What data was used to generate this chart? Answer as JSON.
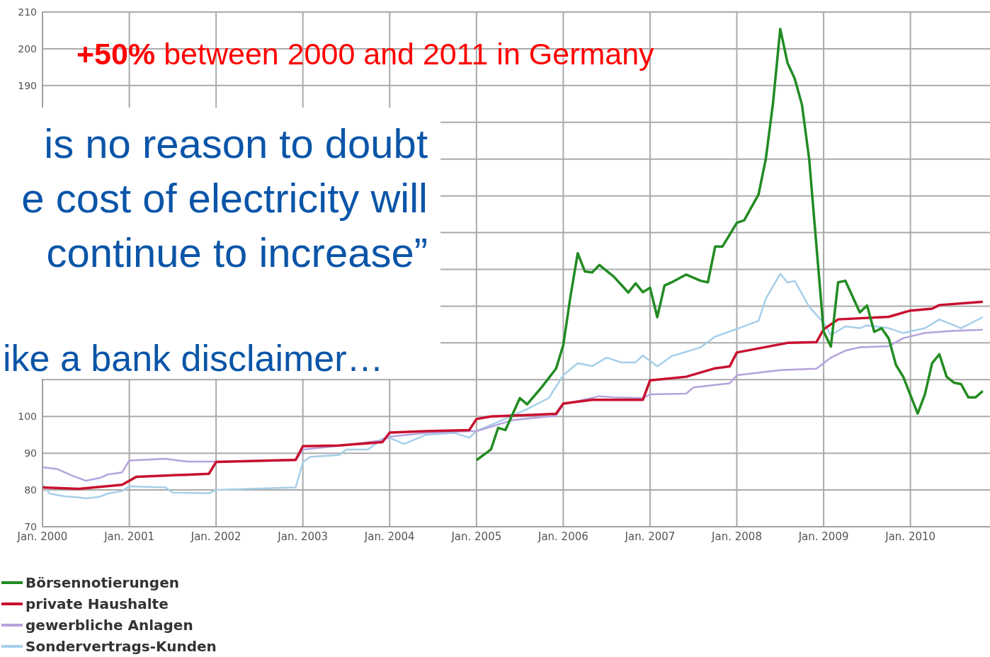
{
  "chart_data": {
    "type": "line",
    "annotations": [
      "+50% between 2000 and 2011 in Germany",
      "is no reason to doubt",
      "e cost of electricity will",
      "continue to increase”",
      "ike a bank disclaimer…"
    ],
    "xlim": [
      "2000-01",
      "2010-12"
    ],
    "xticks": [
      {
        "value": "2000-01",
        "label": "Jan. 2000"
      },
      {
        "value": "2001-01",
        "label": "Jan. 2001"
      },
      {
        "value": "2002-01",
        "label": "Jan. 2002"
      },
      {
        "value": "2003-01",
        "label": "Jan. 2003"
      },
      {
        "value": "2004-01",
        "label": "Jan. 2004"
      },
      {
        "value": "2005-01",
        "label": "Jan. 2005"
      },
      {
        "value": "2006-01",
        "label": "Jan. 2006"
      },
      {
        "value": "2007-01",
        "label": "Jan. 2007"
      },
      {
        "value": "2008-01",
        "label": "Jan. 2008"
      },
      {
        "value": "2009-01",
        "label": "Jan. 2009"
      },
      {
        "value": "2010-01",
        "label": "Jan. 2010"
      }
    ],
    "ylim": [
      70,
      210
    ],
    "yticks": [
      70,
      80,
      90,
      100,
      {
        "value": 110,
        "label": null
      },
      {
        "value": 120,
        "label": null
      },
      {
        "value": 130,
        "label": null
      },
      {
        "value": 140,
        "label": null
      },
      {
        "value": 150,
        "label": null
      },
      {
        "value": 160,
        "label": null
      },
      {
        "value": 170,
        "label": null
      },
      {
        "value": 180,
        "label": null
      },
      190,
      200,
      210
    ],
    "grid": true,
    "legend": "bottom left",
    "marker": "none",
    "line_style": "solid",
    "series": [
      {
        "name": "Börsennotierungen",
        "color": "#228b22",
        "x": [
          "2005-01",
          "2005-03",
          "2005-04",
          "2005-05",
          "2005-07",
          "2005-08",
          "2005-10",
          "2005-12",
          "2006-01",
          "2006-02",
          "2006-03",
          "2006-04",
          "2006-05",
          "2006-06",
          "2006-08",
          "2006-10",
          "2006-11",
          "2006-12",
          "2007-01",
          "2007-02",
          "2007-03",
          "2007-04",
          "2007-06",
          "2007-08",
          "2007-09",
          "2007-10",
          "2007-11",
          "2007-12",
          "2008-01",
          "2008-02",
          "2008-04",
          "2008-05",
          "2008-06",
          "2008-07",
          "2008-08",
          "2008-09",
          "2008-10",
          "2008-11",
          "2008-12",
          "2009-01",
          "2009-02",
          "2009-03",
          "2009-04",
          "2009-06",
          "2009-07",
          "2009-08",
          "2009-09",
          "2009-10",
          "2009-11",
          "2009-12",
          "2010-02",
          "2010-03",
          "2010-04",
          "2010-05",
          "2010-06",
          "2010-07",
          "2010-08",
          "2010-09",
          "2010-10",
          "2010-11"
        ],
        "values": [
          88.1,
          91,
          96.9,
          96.3,
          105,
          103.3,
          107.9,
          113,
          119.4,
          132.7,
          144.4,
          139.4,
          139.2,
          141.2,
          138,
          133.7,
          136.2,
          133.8,
          135,
          127,
          135.6,
          136.5,
          138.6,
          136.9,
          136.5,
          146.2,
          146.2,
          149.4,
          152.7,
          153.3,
          160.4,
          170,
          185.2,
          205.4,
          196.2,
          191.9,
          184.8,
          170,
          146.5,
          123.1,
          119,
          136.5,
          136.9,
          128.3,
          130.2,
          123,
          124,
          121.2,
          114,
          110.8,
          100.8,
          106,
          114.5,
          116.9,
          110.8,
          109.2,
          108.8,
          105.2,
          105.2,
          106.9
        ]
      },
      {
        "name": "private Haushalte",
        "color": "#c8102e",
        "x": [
          "2000-01",
          "2000-06",
          "2000-12",
          "2001-02",
          "2001-12",
          "2002-01",
          "2002-12",
          "2003-01",
          "2003-06",
          "2003-12",
          "2004-01",
          "2004-06",
          "2004-12",
          "2005-01",
          "2005-03",
          "2005-12",
          "2006-01",
          "2006-05",
          "2006-12",
          "2007-01",
          "2007-06",
          "2007-10",
          "2007-12",
          "2008-01",
          "2008-08",
          "2008-12",
          "2009-01",
          "2009-03",
          "2009-10",
          "2010-01",
          "2010-04",
          "2010-05",
          "2010-11"
        ],
        "values": [
          80.7,
          80.3,
          81.4,
          83.6,
          84.4,
          87.6,
          88.2,
          91.9,
          92.1,
          93,
          95.6,
          96,
          96.3,
          99.3,
          100,
          100.7,
          103.5,
          104.5,
          104.5,
          109.8,
          110.8,
          113.1,
          113.6,
          117.4,
          120,
          120.2,
          123.7,
          126.4,
          127.1,
          128.8,
          129.3,
          130.3,
          131.2
        ]
      },
      {
        "name": "gewerbliche Anlagen",
        "color": "#b5a3dd",
        "x": [
          "2000-01",
          "2000-03",
          "2000-05",
          "2000-07",
          "2000-09",
          "2000-10",
          "2000-12",
          "2001-01",
          "2001-06",
          "2001-09",
          "2001-12",
          "2002-12",
          "2003-01",
          "2003-06",
          "2003-12",
          "2004-01",
          "2004-06",
          "2004-12",
          "2005-01",
          "2005-06",
          "2005-12",
          "2006-01",
          "2006-06",
          "2006-08",
          "2006-12",
          "2007-01",
          "2007-06",
          "2007-07",
          "2007-12",
          "2008-01",
          "2008-07",
          "2008-12",
          "2009-02",
          "2009-04",
          "2009-06",
          "2009-10",
          "2009-12",
          "2010-03",
          "2010-07",
          "2010-11"
        ],
        "values": [
          86.2,
          85.7,
          84,
          82.5,
          83.3,
          84.2,
          84.8,
          88,
          88.5,
          87.7,
          87.7,
          88,
          91,
          92,
          93.5,
          94.5,
          95.5,
          96,
          96,
          99,
          100.2,
          103.3,
          105.5,
          105.2,
          105,
          106,
          106.2,
          107.9,
          109,
          111.2,
          112.6,
          113,
          116,
          117.9,
          118.8,
          119.1,
          121.3,
          122.7,
          123.3,
          123.6
        ]
      },
      {
        "name": "Sondervertrags-Kunden",
        "color": "#a6cfea",
        "x": [
          "2000-01",
          "2000-02",
          "2000-04",
          "2000-06",
          "2000-07",
          "2000-09",
          "2000-10",
          "2000-12",
          "2001-01",
          "2001-06",
          "2001-07",
          "2001-12",
          "2002-01",
          "2002-12",
          "2003-01",
          "2003-02",
          "2003-06",
          "2003-07",
          "2003-10",
          "2003-12",
          "2004-01",
          "2004-03",
          "2004-06",
          "2004-10",
          "2004-12",
          "2005-01",
          "2005-06",
          "2005-08",
          "2005-11",
          "2006-01",
          "2006-03",
          "2006-05",
          "2006-07",
          "2006-09",
          "2006-11",
          "2006-12",
          "2007-02",
          "2007-04",
          "2007-08",
          "2007-10",
          "2008-01",
          "2008-04",
          "2008-05",
          "2008-07",
          "2008-08",
          "2008-09",
          "2008-11",
          "2009-01",
          "2009-02",
          "2009-04",
          "2009-06",
          "2009-07",
          "2009-10",
          "2009-12",
          "2010-03",
          "2010-05",
          "2010-08",
          "2010-11"
        ],
        "values": [
          81.5,
          79,
          78.3,
          78,
          77.7,
          78.2,
          79,
          79.7,
          81,
          80.7,
          79.3,
          79.1,
          80,
          80.7,
          87.5,
          89,
          89.5,
          91,
          91,
          94,
          94.2,
          92.5,
          95,
          95.5,
          94.2,
          96,
          100.2,
          102,
          105,
          111.2,
          114.5,
          113.7,
          116,
          114.7,
          114.7,
          116.6,
          113.6,
          116.4,
          118.8,
          121.7,
          123.8,
          126,
          132,
          138.8,
          136.4,
          136.9,
          129.8,
          125.5,
          122.1,
          124.5,
          124,
          124.8,
          124,
          122.7,
          124,
          126.4,
          124,
          127
        ]
      }
    ]
  }
}
